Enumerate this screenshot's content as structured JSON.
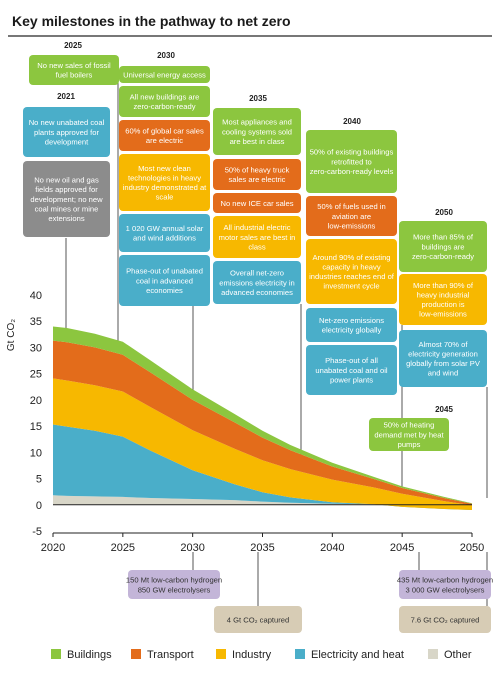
{
  "title": "Key milestones in the pathway to net zero",
  "chart_data": {
    "type": "area",
    "ylabel": "Gt CO₂",
    "x": [
      2020,
      2021,
      2023,
      2025,
      2027,
      2030,
      2033,
      2035,
      2037,
      2040,
      2043,
      2045,
      2048,
      2050
    ],
    "xticks": [
      "2020",
      "2025",
      "2030",
      "2035",
      "2040",
      "2045",
      "2050"
    ],
    "yticks": [
      "40",
      "35",
      "30",
      "25",
      "20",
      "15",
      "10",
      "5",
      "0",
      "-5"
    ],
    "xlim": [
      2020,
      2050
    ],
    "ylim": [
      -5,
      40
    ],
    "series": [
      {
        "name": "Other",
        "color": "#d8d6c8",
        "values": [
          1.8,
          1.7,
          1.6,
          1.5,
          1.3,
          1.1,
          0.9,
          0.6,
          0.4,
          0.2,
          0.1,
          -0.2,
          -0.5,
          -0.7
        ]
      },
      {
        "name": "Electricity and heat",
        "color": "#4aaec9",
        "values": [
          13.5,
          13.2,
          12.5,
          11.5,
          9.0,
          5.5,
          3.0,
          1.8,
          1.0,
          0.3,
          0.0,
          -0.2,
          -0.3,
          -0.3
        ]
      },
      {
        "name": "Industry",
        "color": "#f7b800",
        "values": [
          8.8,
          8.8,
          8.7,
          8.6,
          8.3,
          7.6,
          6.8,
          6.1,
          5.4,
          4.3,
          3.2,
          2.5,
          1.5,
          0.9
        ]
      },
      {
        "name": "Transport",
        "color": "#e36c1b",
        "values": [
          7.2,
          7.3,
          7.2,
          7.0,
          6.6,
          5.8,
          5.0,
          4.3,
          3.6,
          2.5,
          1.6,
          1.1,
          0.6,
          0.3
        ]
      },
      {
        "name": "Buildings",
        "color": "#8cc63f",
        "values": [
          2.7,
          2.7,
          2.6,
          2.5,
          2.3,
          2.0,
          1.6,
          1.3,
          1.0,
          0.7,
          0.4,
          0.3,
          0.2,
          0.1
        ]
      }
    ],
    "legend_position": "bottom"
  },
  "years": {
    "y2021": "2021",
    "y2025": "2025",
    "y2030": "2030",
    "y2035": "2035",
    "y2040": "2040",
    "y2045": "2045",
    "y2050": "2050"
  },
  "milestones": {
    "m2025_1": "No new sales of fossil fuel boilers",
    "m2021_1": "No new unabated coal plants approved for development",
    "m2021_2": "No new oil and gas fields approved for development; no new coal mines or mine extensions",
    "m2030_1": "Universal energy access",
    "m2030_2": "All new buildings are zero-carbon-ready",
    "m2030_3": "60% of global car sales are electric",
    "m2030_4": "Most new clean technologies in heavy industry demonstrated at scale",
    "m2030_5": "1 020 GW annual solar and wind additions",
    "m2030_6": "Phase-out of unabated coal in advanced economies",
    "m2035_1": "Most appliances and cooling systems sold are best in class",
    "m2035_2": "50% of heavy truck sales are electric",
    "m2035_3": "No new ICE car sales",
    "m2035_4": "All industrial electric motor sales are best in class",
    "m2035_5": "Overall net-zero emissions electricity in advanced economies",
    "m2040_1": "50% of existing buildings retrofitted to zero-carbon-ready levels",
    "m2040_2": "50% of fuels used in aviation are low-emissions",
    "m2040_3": "Around 90% of existing capacity in heavy industries reaches end of investment cycle",
    "m2040_4": "Net-zero emissions electricity globally",
    "m2040_5": "Phase-out of all unabated coal and oil power plants",
    "m2050_1": "More than 85% of buildings are zero-carbon-ready",
    "m2050_2": "More than 90% of heavy industrial production is low-emissions",
    "m2050_3": "Almost 70% of electricity generation globally from solar PV and wind",
    "m2045_1": "50% of heating demand met by heat pumps"
  },
  "bottom_notes": {
    "n2030_a": "150 Mt low-carbon hydrogen",
    "n2030_b": "850 GW electrolysers",
    "n2035": "4 Gt CO₂ captured",
    "n2050_a": "435 Mt low-carbon hydrogen",
    "n2050_b": "3 000 GW electrolysers",
    "n2050_c": "7.6 Gt CO₂ captured"
  },
  "colors": {
    "buildings": "#8cc63f",
    "transport": "#e36c1b",
    "industry": "#f7b800",
    "electricity": "#4aaec9",
    "other": "#d8d6c8",
    "gray_box": "#8c8c8c",
    "purple_box": "#c3b5d8",
    "tan_box": "#d7ccb5",
    "axis": "#222222"
  }
}
